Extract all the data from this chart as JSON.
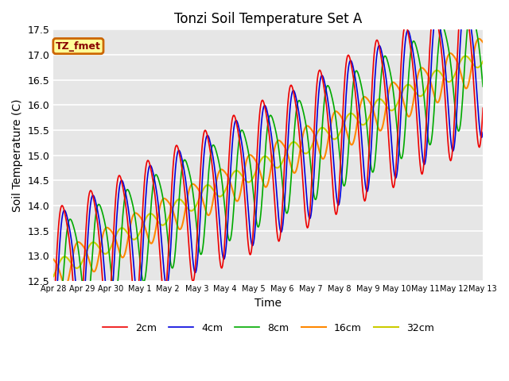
{
  "title": "Tonzi Soil Temperature Set A",
  "xlabel": "Time",
  "ylabel": "Soil Temperature (C)",
  "ylim": [
    12.5,
    17.5
  ],
  "background_color": "#e6e6e6",
  "figure_color": "#ffffff",
  "annotation_text": "TZ_fmet",
  "annotation_facecolor": "#ffff99",
  "annotation_edgecolor": "#cc6600",
  "annotation_textcolor": "#880000",
  "xtick_labels": [
    "Apr 28",
    "Apr 29",
    "Apr 30",
    "May 1",
    "May 2",
    "May 3",
    "May 4",
    "May 5",
    "May 6",
    "May 7",
    "May 8",
    "May 9",
    "May 10",
    "May 11",
    "May 12",
    "May 13"
  ],
  "series": {
    "2cm": {
      "color": "#ee0000",
      "linewidth": 1.2
    },
    "4cm": {
      "color": "#0000dd",
      "linewidth": 1.2
    },
    "8cm": {
      "color": "#00aa00",
      "linewidth": 1.2
    },
    "16cm": {
      "color": "#ff8800",
      "linewidth": 1.5
    },
    "32cm": {
      "color": "#cccc00",
      "linewidth": 1.5
    }
  },
  "ytick_values": [
    12.5,
    13.0,
    13.5,
    14.0,
    14.5,
    15.0,
    15.5,
    16.0,
    16.5,
    17.0,
    17.5
  ],
  "grid_color": "#ffffff",
  "grid_linewidth": 1.2
}
